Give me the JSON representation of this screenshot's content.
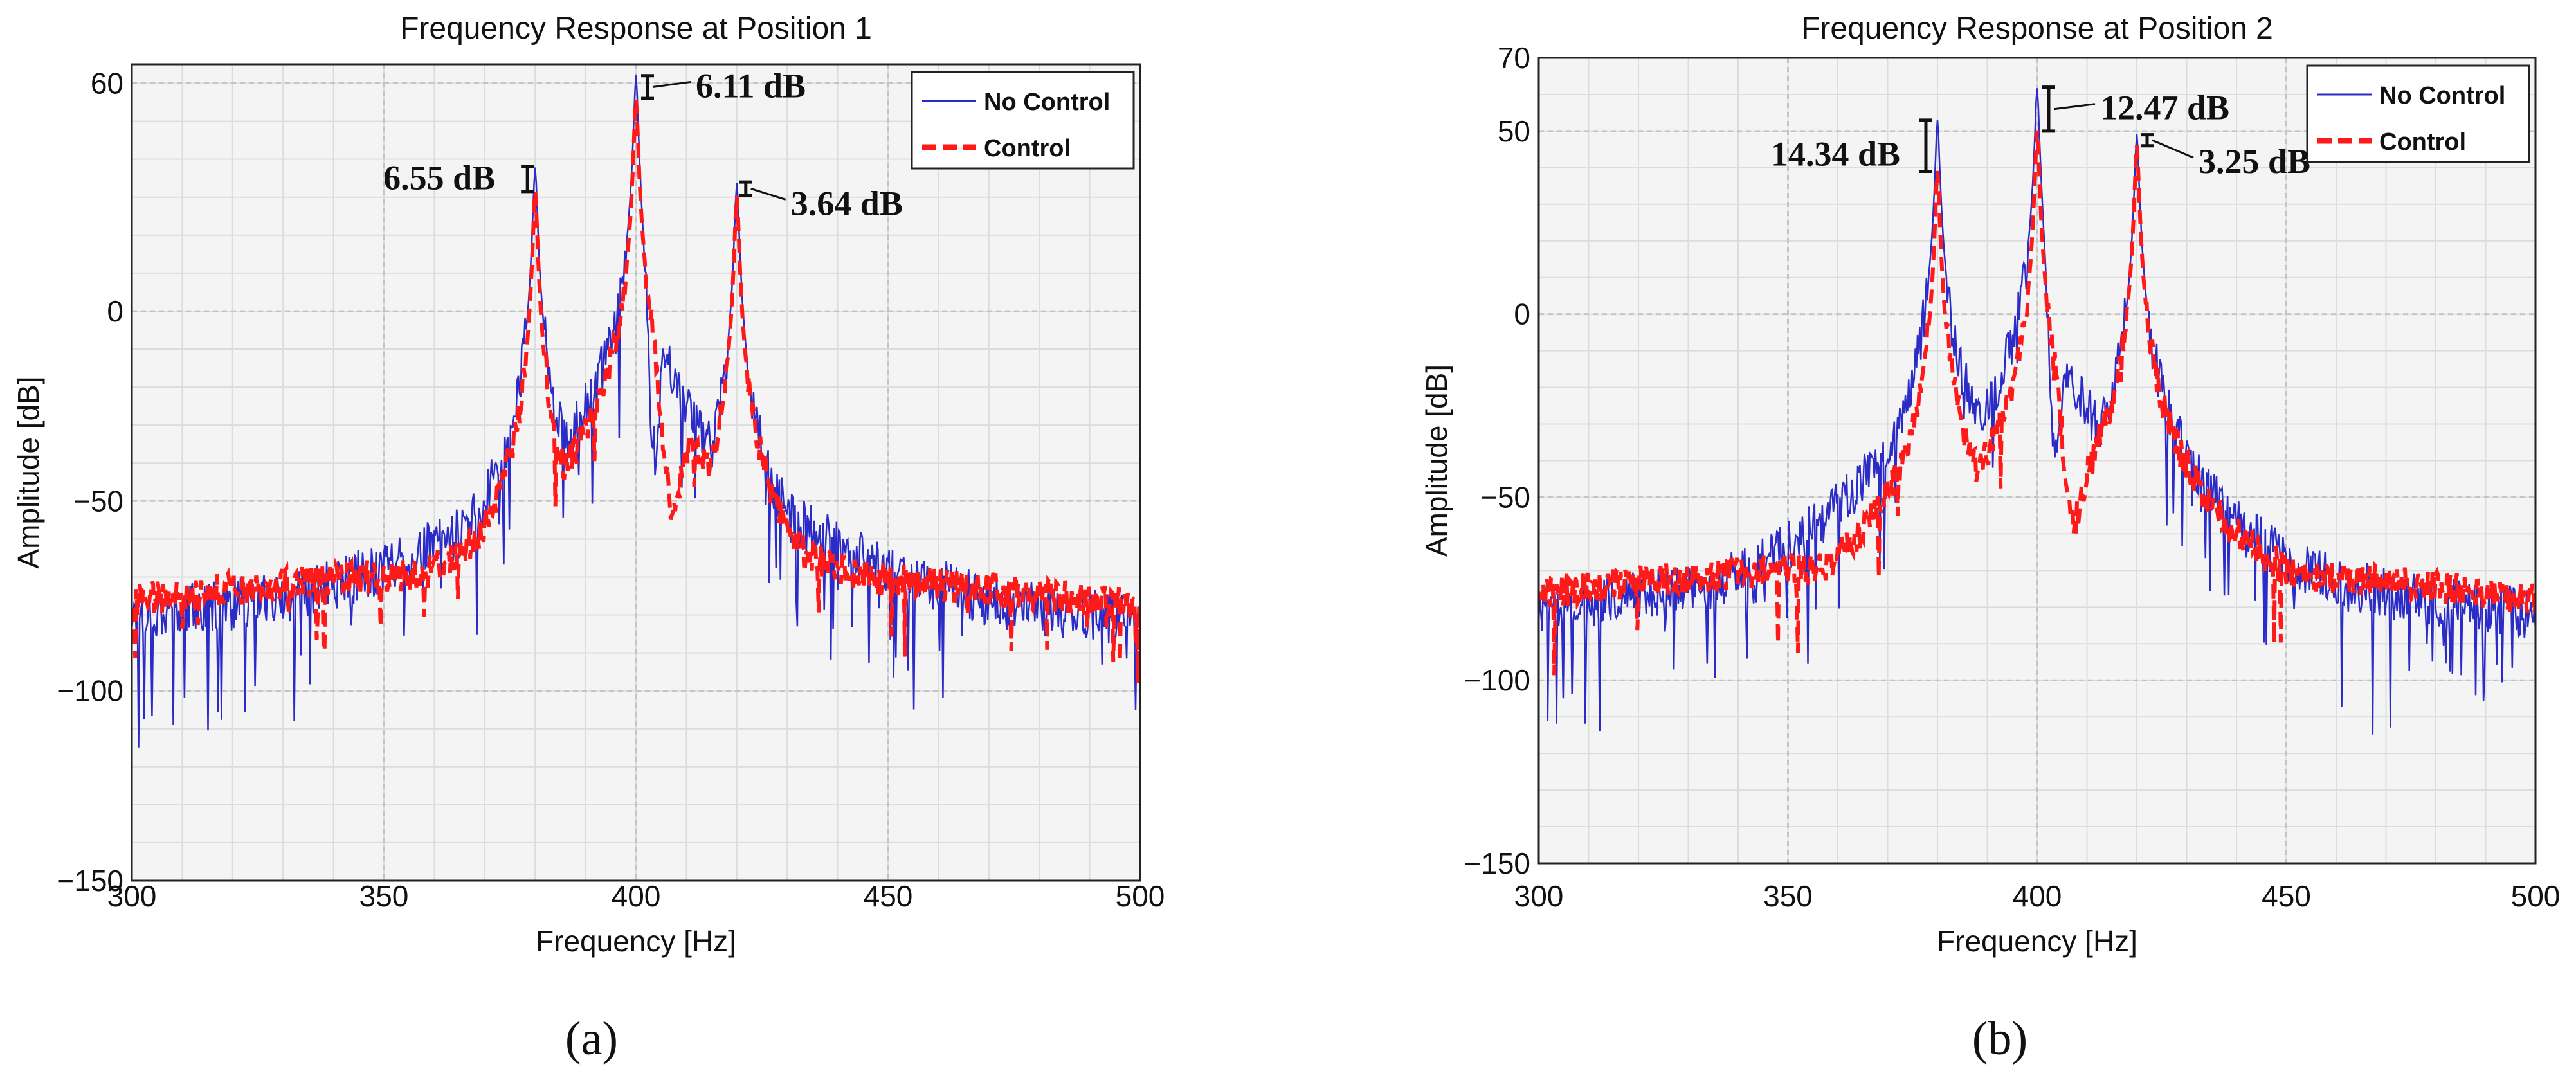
{
  "chart_data": [
    {
      "type": "line",
      "panel_label": "(a)",
      "title": "Frequency Response at Position 1",
      "xlabel": "Frequency [Hz]",
      "ylabel": "Amplitude [dB]",
      "xlim": [
        300,
        500
      ],
      "ylim": [
        -150,
        65
      ],
      "xticks": [
        300,
        350,
        400,
        450,
        500
      ],
      "xtick_labels": [
        "300",
        "350",
        "400",
        "450",
        "500"
      ],
      "yticks": [
        -150,
        -100,
        -50,
        0,
        60
      ],
      "ytick_labels": [
        "−150",
        "−100",
        "−50",
        "0",
        "60"
      ],
      "grid": true,
      "legend_position": "top-right",
      "series": [
        {
          "name": "No Control",
          "color": "#2b2bc8",
          "style": "solid"
        },
        {
          "name": "Control",
          "color": "#ff1a1a",
          "style": "dashed"
        }
      ],
      "peaks": [
        {
          "freq": 380,
          "no_control": 38,
          "control": 31.5,
          "annotation": "6.55 dB"
        },
        {
          "freq": 400,
          "no_control": 62,
          "control": 56,
          "annotation": "6.11 dB"
        },
        {
          "freq": 420,
          "no_control": 34,
          "control": 30.5,
          "annotation": "3.64 dB"
        }
      ]
    },
    {
      "type": "line",
      "panel_label": "(b)",
      "title": "Frequency Response at Position 2",
      "xlabel": "Frequency [Hz]",
      "ylabel": "Amplitude [dB]",
      "xlim": [
        300,
        500
      ],
      "ylim": [
        -150,
        70
      ],
      "xticks": [
        300,
        350,
        400,
        450,
        500
      ],
      "xtick_labels": [
        "300",
        "350",
        "400",
        "450",
        "500"
      ],
      "yticks": [
        -150,
        -100,
        -50,
        0,
        50,
        70
      ],
      "ytick_labels": [
        "−150",
        "−100",
        "−50",
        "0",
        "50",
        "70"
      ],
      "grid": true,
      "legend_position": "top-right",
      "series": [
        {
          "name": "No Control",
          "color": "#2b2bc8",
          "style": "solid"
        },
        {
          "name": "Control",
          "color": "#ff1a1a",
          "style": "dashed"
        }
      ],
      "peaks": [
        {
          "freq": 380,
          "no_control": 53,
          "control": 39,
          "annotation": "14.34 dB"
        },
        {
          "freq": 400,
          "no_control": 62,
          "control": 50,
          "annotation": "12.47 dB"
        },
        {
          "freq": 420,
          "no_control": 49,
          "control": 46,
          "annotation": "3.25 dB"
        }
      ]
    }
  ]
}
